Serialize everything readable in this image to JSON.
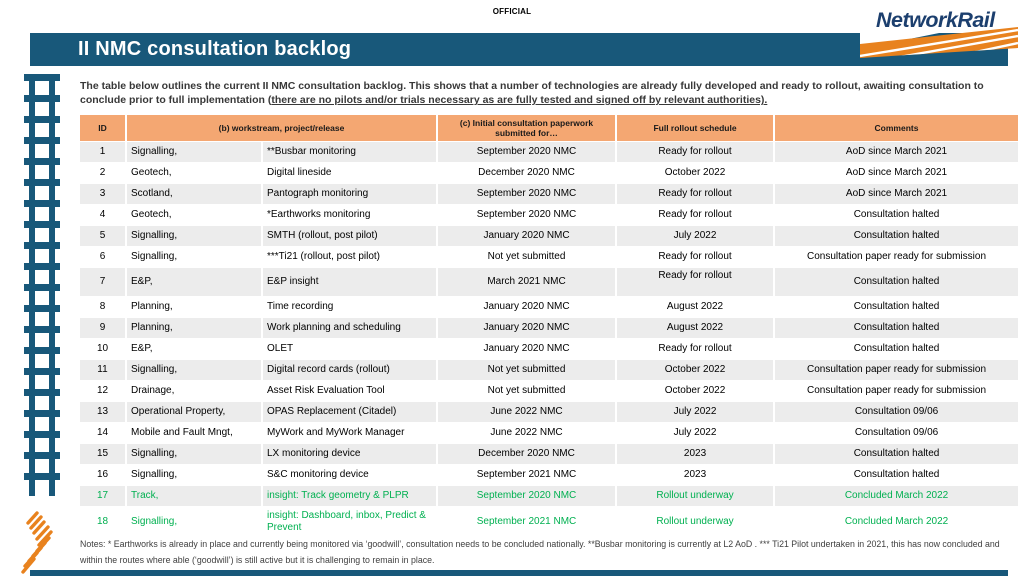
{
  "page": {
    "classification_label": "OFFICIAL",
    "title": "II NMC consultation backlog",
    "logo_text": "NetworkRail",
    "intro_pre": "The table below outlines the current II NMC consultation backlog. This shows that a number of technologies are already fully developed and ready to rollout, awaiting consultation to conclude prior to full implementation (",
    "intro_underlined": "there are no pilots and/or trials necessary as are fully tested and signed off by relevant authorities).",
    "notes": "Notes: * Earthworks is already in place and currently being monitored via ‘goodwill’, consultation needs to be concluded nationally.  **Busbar monitoring is currently at L2 AoD .  *** Ti21 Pilot undertaken in 2021, this has now concluded and within the routes where able (‘goodwill’) is still active but it is challenging to remain in place."
  },
  "colors": {
    "teal": "#18587A",
    "navy": "#1C3F6E",
    "logo_orange": "#E8821E",
    "table_header_orange": "#F4A772",
    "row_alt_gray": "#ECECEC",
    "highlight_green": "#00B050"
  },
  "table": {
    "headers": [
      "ID",
      "(b) workstream, project/release",
      "(c) Initial consultation paperwork submitted for…",
      "Full rollout schedule",
      "Comments"
    ],
    "rows": [
      {
        "id": "1",
        "workstream": "Signalling,",
        "project": "**Busbar monitoring",
        "submitted": "September 2020 NMC",
        "schedule": "Ready for rollout",
        "comments": "AoD since March 2021",
        "highlight": false
      },
      {
        "id": "2",
        "workstream": "Geotech,",
        "project": "Digital lineside",
        "submitted": "December 2020 NMC",
        "schedule": "October 2022",
        "comments": "AoD since March 2021",
        "highlight": false
      },
      {
        "id": "3",
        "workstream": "Scotland,",
        "project": "Pantograph monitoring",
        "submitted": "September 2020 NMC",
        "schedule": "Ready for rollout",
        "comments": "AoD since March 2021",
        "highlight": false
      },
      {
        "id": "4",
        "workstream": "Geotech,",
        "project": "*Earthworks monitoring",
        "submitted": "September 2020 NMC",
        "schedule": "Ready for rollout",
        "comments": "Consultation halted",
        "highlight": false
      },
      {
        "id": "5",
        "workstream": "Signalling,",
        "project": "SMTH (rollout, post pilot)",
        "submitted": "January 2020 NMC",
        "schedule": "July 2022",
        "comments": "Consultation halted",
        "highlight": false
      },
      {
        "id": "6",
        "workstream": "Signalling,",
        "project": "***Ti21 (rollout, post pilot)",
        "submitted": "Not yet submitted",
        "schedule": "Ready for rollout",
        "comments": "Consultation paper ready for submission",
        "highlight": false
      },
      {
        "id": "7",
        "workstream": "E&P,",
        "project": "E&P insight",
        "submitted": "March 2021 NMC",
        "schedule": "Ready for rollout",
        "comments": "Consultation halted",
        "highlight": false
      },
      {
        "id": "8",
        "workstream": "Planning,",
        "project": "Time recording",
        "submitted": "January 2020 NMC",
        "schedule": "August 2022",
        "comments": "Consultation halted",
        "highlight": false
      },
      {
        "id": "9",
        "workstream": "Planning,",
        "project": "Work planning and scheduling",
        "submitted": "January 2020 NMC",
        "schedule": "August 2022",
        "comments": "Consultation halted",
        "highlight": false
      },
      {
        "id": "10",
        "workstream": "E&P,",
        "project": "OLET",
        "submitted": "January 2020 NMC",
        "schedule": "Ready for rollout",
        "comments": "Consultation halted",
        "highlight": false
      },
      {
        "id": "11",
        "workstream": "Signalling,",
        "project": "Digital record cards (rollout)",
        "submitted": "Not yet submitted",
        "schedule": "October 2022",
        "comments": "Consultation paper ready for submission",
        "highlight": false
      },
      {
        "id": "12",
        "workstream": "Drainage,",
        "project": "Asset Risk Evaluation Tool",
        "submitted": "Not yet submitted",
        "schedule": "October 2022",
        "comments": "Consultation paper ready for submission",
        "highlight": false
      },
      {
        "id": "13",
        "workstream": "Operational Property,",
        "project": "OPAS Replacement (Citadel)",
        "submitted": "June 2022 NMC",
        "schedule": "July 2022",
        "comments": "Consultation 09/06",
        "highlight": false
      },
      {
        "id": "14",
        "workstream": "Mobile and Fault Mngt,",
        "project": "MyWork and MyWork Manager",
        "submitted": "June 2022 NMC",
        "schedule": "July 2022",
        "comments": "Consultation 09/06",
        "highlight": false
      },
      {
        "id": "15",
        "workstream": "Signalling,",
        "project": "LX monitoring device",
        "submitted": "December 2020 NMC",
        "schedule": "2023",
        "comments": "Consultation halted",
        "highlight": false
      },
      {
        "id": "16",
        "workstream": "Signalling,",
        "project": "S&C monitoring device",
        "submitted": "September 2021 NMC",
        "schedule": "2023",
        "comments": "Consultation halted",
        "highlight": false
      },
      {
        "id": "17",
        "workstream": "Track,",
        "project": "insight: Track geometry & PLPR",
        "submitted": "September 2020 NMC",
        "schedule": "Rollout underway",
        "comments": "Concluded March 2022",
        "highlight": true
      },
      {
        "id": "18",
        "workstream": "Signalling,",
        "project": "insight: Dashboard, inbox, Predict & Prevent",
        "submitted": "September 2021 NMC",
        "schedule": "Rollout underway",
        "comments": "Concluded March 2022",
        "highlight": true
      }
    ]
  }
}
